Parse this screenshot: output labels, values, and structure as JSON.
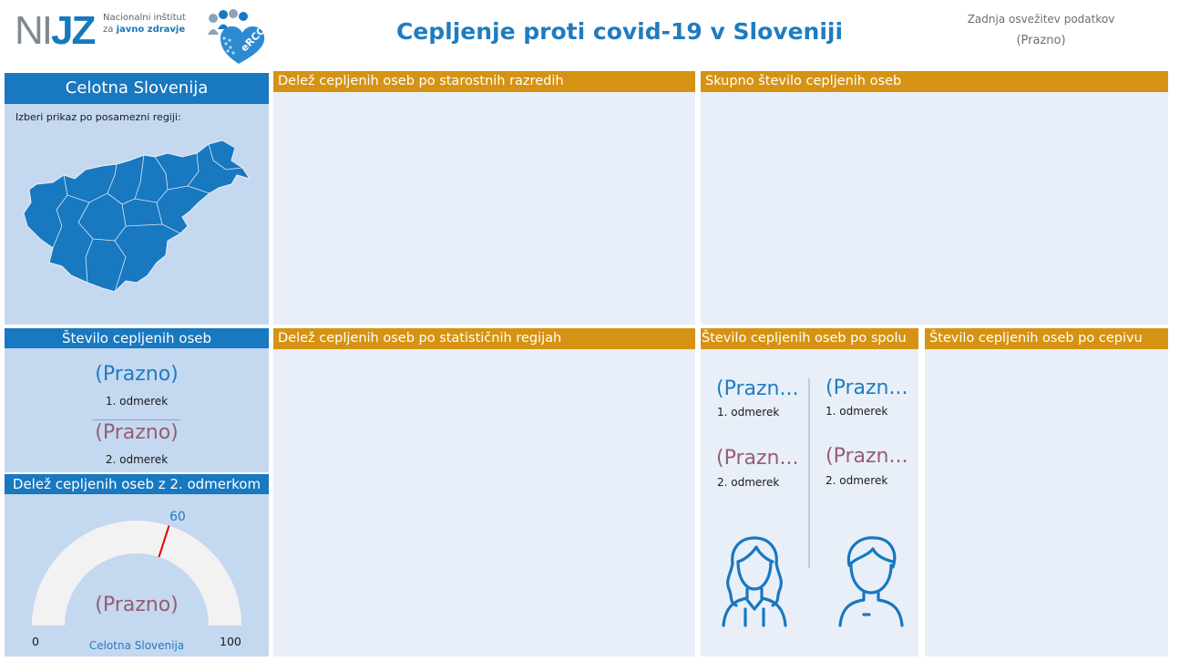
{
  "header": {
    "logo_mark_left": "NI",
    "logo_mark_right": "JZ",
    "logo_line1": "Nacionalni inštitut",
    "logo_line2_prefix": "za",
    "logo_line2_bold": "javno zdravje",
    "erco_text": "eRCO",
    "title": "Cepljenje proti covid-19 v Sloveniji",
    "update_label": "Zadnja osvežitev podatkov",
    "update_value": "(Prazno)"
  },
  "region_panel": {
    "title": "Celotna Slovenija",
    "hint": "Izberi prikaz po posamezni regiji:"
  },
  "vaccinated_count": {
    "title": "Število cepljenih oseb",
    "dose1_value": "(Prazno)",
    "dose1_label": "1. odmerek",
    "dose2_value": "(Prazno)",
    "dose2_label": "2. odmerek"
  },
  "share_dose2": {
    "title": "Delež cepljenih oseb z 2. odmerkom",
    "value": "(Prazno)",
    "gauge_min": "0",
    "gauge_max": "100",
    "gauge_target": "60",
    "gauge_target_fraction": 0.6,
    "region_label": "Celotna Slovenija"
  },
  "panels": {
    "age_share": "Delež cepljenih oseb po starostnih razredih",
    "total_count": "Skupno število cepljenih oseb",
    "stat_region_share": "Delež cepljenih oseb po statističnih regijah",
    "by_gender": "Število cepljenih oseb po spolu",
    "by_vaccine": "Število cepljenih oseb po cepivu"
  },
  "gender": {
    "female_dose1": "(Prazn...",
    "female_dose1_label": "1. odmerek",
    "female_dose2": "(Prazn...",
    "female_dose2_label": "2. odmerek",
    "male_dose1": "(Prazn...",
    "male_dose1_label": "1. odmerek",
    "male_dose2": "(Prazn...",
    "male_dose2_label": "2. odmerek"
  },
  "colors": {
    "brand_blue": "#1878c0",
    "orange": "#d69313",
    "panel_bg": "#e9eff8",
    "left_bg": "#c4d8f0",
    "mauve": "#965d73"
  },
  "icons": [
    "erco-logo-icon",
    "slovenia-map-icon",
    "female-avatar-icon",
    "male-avatar-icon"
  ]
}
